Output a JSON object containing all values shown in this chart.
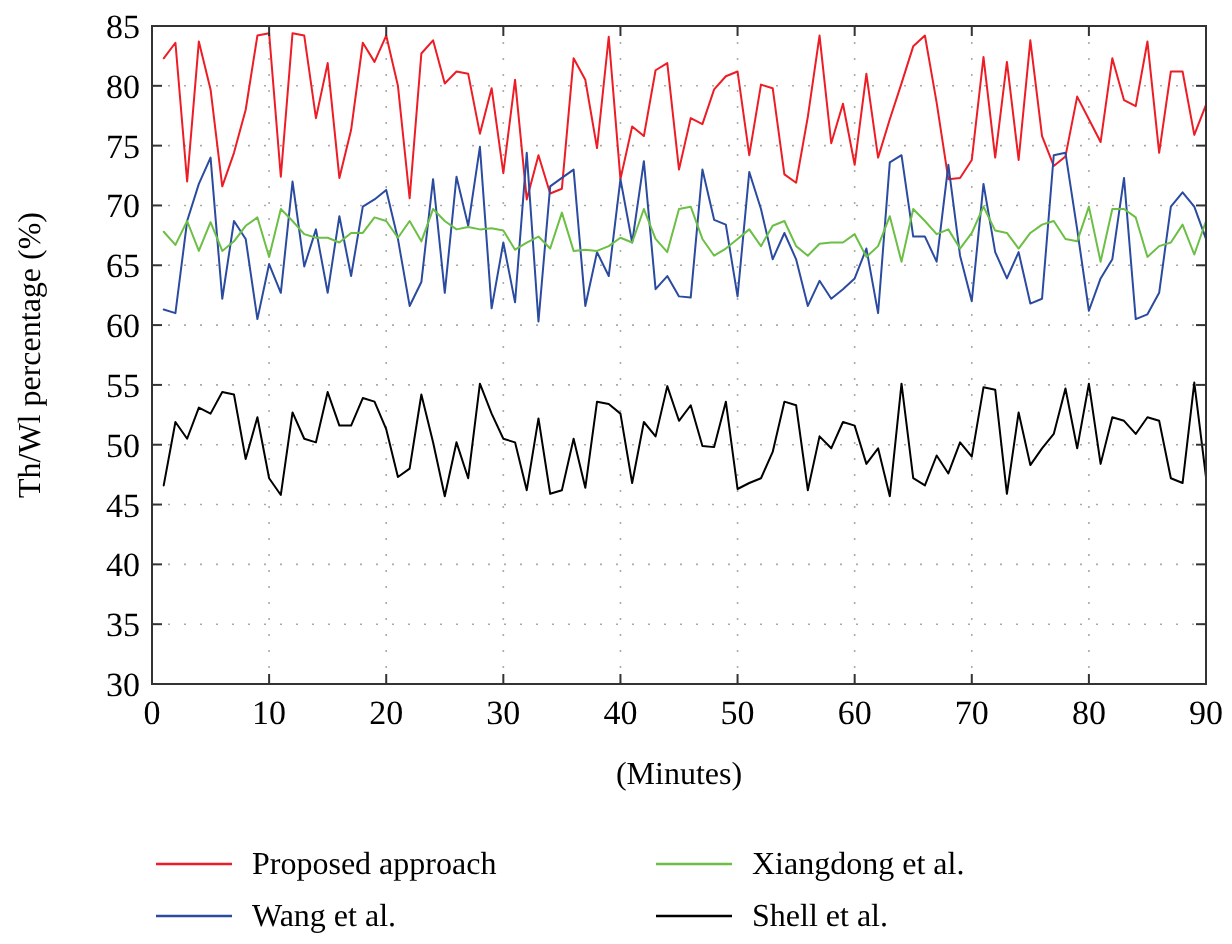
{
  "chart_data": {
    "type": "line",
    "xlabel": "(Minutes)",
    "ylabel": "Th/Wl percentage (%)",
    "x": [
      1,
      2,
      3,
      4,
      5,
      6,
      7,
      8,
      9,
      10,
      11,
      12,
      13,
      14,
      15,
      16,
      17,
      18,
      19,
      20,
      21,
      22,
      23,
      24,
      25,
      26,
      27,
      28,
      29,
      30,
      31,
      32,
      33,
      34,
      35,
      36,
      37,
      38,
      39,
      40,
      41,
      42,
      43,
      44,
      45,
      46,
      47,
      48,
      49,
      50,
      51,
      52,
      53,
      54,
      55,
      56,
      57,
      58,
      59,
      60,
      61,
      62,
      63,
      64,
      65,
      66,
      67,
      68,
      69,
      70,
      71,
      72,
      73,
      74,
      75,
      76,
      77,
      78,
      79,
      80,
      81,
      82,
      83,
      84,
      85,
      86,
      87,
      88,
      89,
      90
    ],
    "series": [
      {
        "name": "Proposed approach",
        "color": "#ee1c25",
        "values": [
          82.3,
          83.6,
          72,
          83.7,
          79.7,
          71.6,
          74.4,
          78,
          84.2,
          84.4,
          72.4,
          84.4,
          84.2,
          77.3,
          81.9,
          72.3,
          76.3,
          83.6,
          82,
          84.2,
          80,
          70.6,
          82.7,
          83.8,
          80.2,
          81.2,
          81,
          76,
          79.8,
          72.7,
          80.5,
          70.5,
          74.2,
          71,
          71.4,
          82.3,
          80.5,
          74.8,
          84.1,
          72.2,
          76.6,
          75.8,
          81.3,
          81.9,
          73,
          77.3,
          76.8,
          79.7,
          80.8,
          81.2,
          74.2,
          80.1,
          79.8,
          72.6,
          71.9,
          77.4,
          84.2,
          75.2,
          78.5,
          73.4,
          81,
          74,
          77.2,
          80.2,
          83.3,
          84.2,
          78.6,
          72.2,
          72.3,
          73.8,
          82.4,
          74,
          82,
          73.8,
          83.8,
          75.8,
          73.3,
          74.1,
          79.1,
          77.2,
          75.3,
          82.3,
          78.8,
          78.3,
          83.7,
          74.4,
          81.2,
          81.2,
          75.9,
          78.4
        ]
      },
      {
        "name": "Wang et al.",
        "color": "#2b4ba0",
        "values": [
          61.3,
          61,
          68.7,
          71.8,
          74,
          62.2,
          68.7,
          67.2,
          60.5,
          65.1,
          62.7,
          72,
          64.9,
          68,
          62.7,
          69.1,
          64.1,
          69.9,
          70.5,
          71.3,
          67.2,
          61.6,
          63.6,
          72.2,
          62.7,
          72.4,
          68.3,
          74.9,
          61.4,
          66.9,
          61.9,
          74.4,
          60.3,
          71.6,
          72.3,
          73,
          61.6,
          66.1,
          64.1,
          72.2,
          66.9,
          73.7,
          63,
          64.1,
          62.4,
          62.3,
          73,
          68.8,
          68.4,
          62.4,
          72.8,
          69.7,
          65.5,
          67.7,
          65.5,
          61.6,
          63.7,
          62.2,
          63,
          63.9,
          66.4,
          61,
          73.6,
          74.2,
          67.4,
          67.4,
          65.3,
          73.4,
          65.8,
          62,
          71.8,
          66.1,
          63.9,
          66.1,
          61.8,
          62.2,
          74.2,
          74.4,
          68,
          61.2,
          63.9,
          65.5,
          72.3,
          60.5,
          60.9,
          62.7,
          69.9,
          71.1,
          69.9,
          67.2
        ]
      },
      {
        "name": "Xiangdong et al.",
        "color": "#6cbf45",
        "values": [
          67.8,
          66.7,
          68.7,
          66.2,
          68.6,
          66.2,
          67,
          68.3,
          69,
          65.7,
          69.7,
          68.7,
          67.6,
          67.3,
          67.3,
          66.9,
          67.7,
          67.7,
          69,
          68.7,
          67.3,
          68.7,
          67,
          69.7,
          68.7,
          68,
          68.2,
          68,
          68.1,
          67.9,
          66.3,
          66.9,
          67.4,
          66.4,
          69.4,
          66.2,
          66.3,
          66.2,
          66.6,
          67.3,
          66.9,
          69.7,
          67.2,
          66.1,
          69.7,
          69.9,
          67.2,
          65.8,
          66.4,
          67.2,
          68,
          66.6,
          68.3,
          68.7,
          66.6,
          65.8,
          66.8,
          66.9,
          66.9,
          67.6,
          65.7,
          66.6,
          69.1,
          65.3,
          69.7,
          68.7,
          67.6,
          68,
          66.4,
          67.7,
          69.9,
          67.9,
          67.7,
          66.4,
          67.7,
          68.4,
          68.7,
          67.2,
          67,
          69.9,
          65.3,
          69.7,
          69.7,
          69,
          65.7,
          66.6,
          66.9,
          68.4,
          65.9,
          68.7
        ]
      },
      {
        "name": "Shell et al.",
        "color": "#000000",
        "values": [
          46.6,
          51.9,
          50.5,
          53.1,
          52.6,
          54.4,
          54.2,
          48.8,
          52.3,
          47.2,
          45.8,
          52.7,
          50.5,
          50.2,
          54.4,
          51.6,
          51.6,
          53.9,
          53.6,
          51.3,
          47.3,
          48,
          54.2,
          50.2,
          45.7,
          50.2,
          47.2,
          55.1,
          52.6,
          50.5,
          50.2,
          46.2,
          52.2,
          45.9,
          46.2,
          50.5,
          46.4,
          53.6,
          53.4,
          52.6,
          46.8,
          51.9,
          50.7,
          54.9,
          52,
          53.3,
          49.9,
          49.8,
          53.6,
          46.3,
          46.8,
          47.2,
          49.4,
          53.6,
          53.3,
          46.2,
          50.7,
          49.7,
          51.9,
          51.6,
          48.4,
          49.7,
          45.7,
          55.1,
          47.2,
          46.6,
          49.1,
          47.6,
          50.2,
          49,
          54.8,
          54.6,
          45.9,
          52.7,
          48.3,
          49.7,
          50.9,
          54.7,
          49.7,
          55.1,
          48.4,
          52.3,
          52,
          50.9,
          52.3,
          52,
          47.2,
          46.8,
          55.2,
          47.3
        ]
      }
    ],
    "xlim": [
      0,
      90
    ],
    "xticks": [
      0,
      10,
      20,
      30,
      40,
      50,
      60,
      70,
      80,
      90
    ],
    "ylim": [
      30,
      85
    ],
    "yticks": [
      30,
      35,
      40,
      45,
      50,
      55,
      60,
      65,
      70,
      75,
      80,
      85
    ],
    "grid": true,
    "legend": "bottom",
    "marker": "none",
    "line_style": "solid"
  }
}
